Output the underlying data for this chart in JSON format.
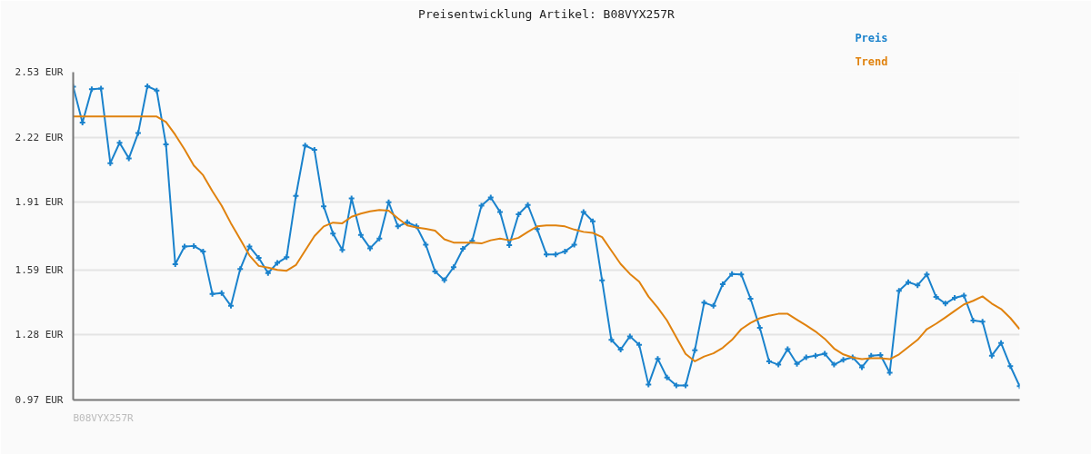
{
  "chart_data": {
    "type": "line",
    "title": "Preisentwicklung Artikel: B08VYX257R",
    "annotations": [
      "B08VYX257R"
    ],
    "categories": [
      null,
      null,
      null,
      null,
      null,
      null,
      null,
      null,
      null,
      null,
      null,
      null,
      null,
      null,
      null,
      null,
      null,
      null,
      null,
      null,
      null,
      null,
      null,
      null,
      null,
      null,
      null,
      null,
      null,
      null,
      null,
      null,
      null,
      null,
      null,
      null,
      null,
      null,
      null,
      null,
      null,
      null,
      null,
      null,
      null,
      null,
      null,
      null,
      null,
      null,
      null,
      null,
      null,
      null,
      null,
      null,
      null,
      null,
      null,
      null,
      null,
      null,
      null,
      null,
      null,
      null,
      null,
      null,
      null,
      null,
      null,
      null,
      null,
      null,
      null,
      null,
      null,
      null,
      null,
      null,
      null,
      null,
      null,
      null,
      null,
      null,
      null,
      null,
      null,
      null,
      null,
      null,
      null,
      null,
      null,
      null,
      null,
      null,
      null,
      null,
      null,
      null,
      null
    ],
    "series": [
      {
        "name": "Preis",
        "color": "#1a82cc",
        "marker": "cross",
        "values": [
          2.461,
          2.29,
          2.449,
          2.452,
          2.097,
          2.194,
          2.12,
          2.24,
          2.463,
          2.443,
          2.186,
          1.616,
          1.7,
          1.703,
          1.677,
          1.475,
          1.479,
          1.418,
          1.593,
          1.7,
          1.646,
          1.574,
          1.622,
          1.649,
          1.941,
          2.181,
          2.16,
          1.891,
          1.762,
          1.684,
          1.929,
          1.755,
          1.692,
          1.738,
          1.911,
          1.796,
          1.816,
          1.796,
          1.709,
          1.582,
          1.54,
          1.602,
          1.689,
          1.727,
          1.895,
          1.934,
          1.865,
          1.707,
          1.854,
          1.898,
          1.784,
          1.663,
          1.663,
          1.677,
          1.709,
          1.865,
          1.82,
          1.539,
          1.256,
          1.21,
          1.273,
          1.233,
          1.043,
          1.166,
          1.077,
          1.039,
          1.039,
          1.207,
          1.433,
          1.418,
          1.521,
          1.57,
          1.567,
          1.452,
          1.314,
          1.154,
          1.138,
          1.212,
          1.142,
          1.173,
          1.181,
          1.19,
          1.138,
          1.161,
          1.173,
          1.126,
          1.181,
          1.184,
          1.1,
          1.49,
          1.531,
          1.516,
          1.567,
          1.46,
          1.429,
          1.456,
          1.467,
          1.348,
          1.343,
          1.181,
          1.241,
          1.131,
          1.036
        ]
      },
      {
        "name": "Trend",
        "color": "#e0820e",
        "marker": "none",
        "values": [
          2.319,
          2.319,
          2.319,
          2.319,
          2.319,
          2.319,
          2.319,
          2.319,
          2.319,
          2.319,
          2.293,
          2.232,
          2.163,
          2.086,
          2.04,
          1.964,
          1.895,
          1.811,
          1.735,
          1.658,
          1.608,
          1.6,
          1.589,
          1.585,
          1.612,
          1.681,
          1.75,
          1.796,
          1.814,
          1.811,
          1.842,
          1.857,
          1.868,
          1.874,
          1.871,
          1.834,
          1.801,
          1.791,
          1.785,
          1.776,
          1.735,
          1.719,
          1.719,
          1.719,
          1.715,
          1.73,
          1.738,
          1.73,
          1.742,
          1.77,
          1.796,
          1.801,
          1.801,
          1.796,
          1.781,
          1.77,
          1.765,
          1.745,
          1.681,
          1.617,
          1.57,
          1.533,
          1.462,
          1.409,
          1.348,
          1.268,
          1.189,
          1.154,
          1.177,
          1.192,
          1.218,
          1.256,
          1.307,
          1.337,
          1.359,
          1.371,
          1.38,
          1.38,
          1.352,
          1.325,
          1.296,
          1.261,
          1.215,
          1.187,
          1.172,
          1.164,
          1.169,
          1.169,
          1.164,
          1.187,
          1.222,
          1.256,
          1.307,
          1.333,
          1.363,
          1.394,
          1.425,
          1.442,
          1.463,
          1.429,
          1.403,
          1.36,
          1.307
        ]
      }
    ],
    "ylim": [
      0.97,
      2.53
    ],
    "yticks": [
      {
        "value": 0.97,
        "label": "0.97 EUR"
      },
      {
        "value": 1.28,
        "label": "1.28 EUR"
      },
      {
        "value": 1.59,
        "label": "1.59 EUR"
      },
      {
        "value": 1.91,
        "label": "1.91 EUR"
      },
      {
        "value": 2.22,
        "label": "2.22 EUR"
      },
      {
        "value": 2.53,
        "label": "2.53 EUR"
      }
    ],
    "grid": "y",
    "tick_labels": "y",
    "line_style": "solid"
  }
}
